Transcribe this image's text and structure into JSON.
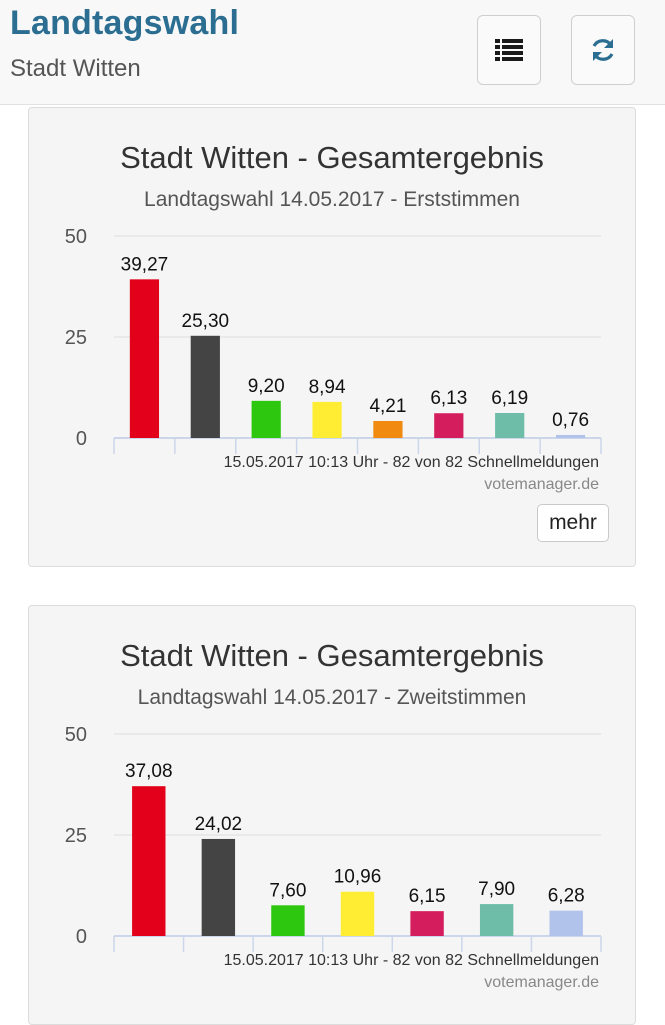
{
  "header": {
    "title": "Landtagswahl",
    "subtitle": "Stadt Witten",
    "list_icon": "list-icon",
    "refresh_icon": "refresh-icon"
  },
  "cards": [
    {
      "title": "Stadt Witten - Gesamtergebnis",
      "subtitle": "Landtagswahl 14.05.2017 - Erststimmen",
      "meta": "15.05.2017 10:13 Uhr - 82 von 82 Schnellmeldungen",
      "credit": "votemanager.de",
      "more_label": "mehr"
    },
    {
      "title": "Stadt Witten - Gesamtergebnis",
      "subtitle": "Landtagswahl 14.05.2017 - Zweitstimmen",
      "meta": "15.05.2017 10:13 Uhr - 82 von 82 Schnellmeldungen",
      "credit": "votemanager.de"
    }
  ],
  "chart_data": [
    {
      "type": "bar",
      "title": "Stadt Witten - Gesamtergebnis",
      "subtitle": "Landtagswahl 14.05.2017 - Erststimmen",
      "values": [
        39.27,
        25.3,
        9.2,
        8.94,
        4.21,
        6.13,
        6.19,
        0.76
      ],
      "labels": [
        "39,27",
        "25,30",
        "9,20",
        "8,94",
        "4,21",
        "6,13",
        "6,19",
        "0,76"
      ],
      "colors": [
        "#e2001a",
        "#444444",
        "#2dc70f",
        "#ffed33",
        "#f08a10",
        "#d41d5c",
        "#6dbda9",
        "#b1c3eb"
      ],
      "ylim": [
        0,
        50
      ],
      "yticks": [
        0,
        25,
        50
      ],
      "grid": true
    },
    {
      "type": "bar",
      "title": "Stadt Witten - Gesamtergebnis",
      "subtitle": "Landtagswahl 14.05.2017 - Zweitstimmen",
      "values": [
        37.08,
        24.02,
        7.6,
        10.96,
        6.15,
        7.9,
        6.28
      ],
      "labels": [
        "37,08",
        "24,02",
        "7,60",
        "10,96",
        "6,15",
        "7,90",
        "6,28"
      ],
      "colors": [
        "#e2001a",
        "#444444",
        "#2dc70f",
        "#ffed33",
        "#d41d5c",
        "#6dbda9",
        "#b1c3eb"
      ],
      "ylim": [
        0,
        50
      ],
      "yticks": [
        0,
        25,
        50
      ],
      "grid": true
    }
  ]
}
